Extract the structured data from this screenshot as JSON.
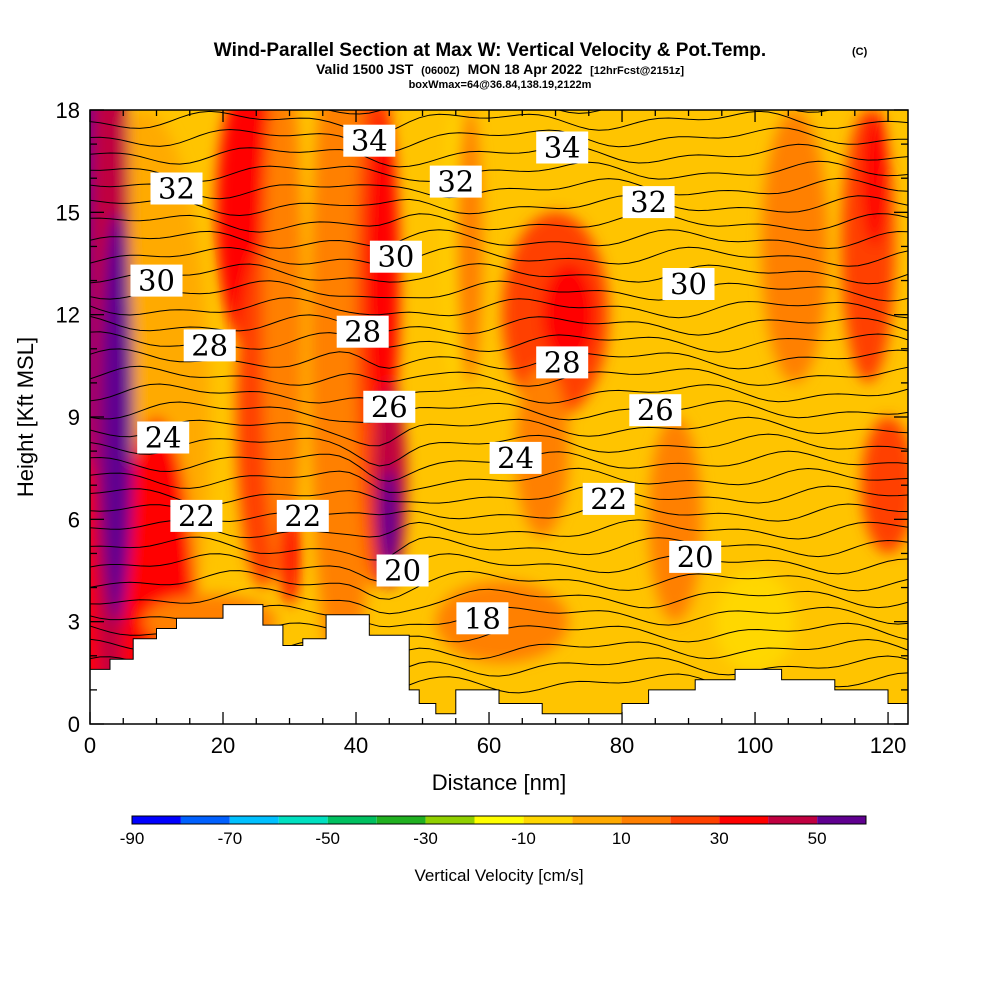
{
  "chart_data": {
    "type": "heatmap",
    "title": "Wind-Parallel Section at Max W: Vertical Velocity & Pot.Temp.",
    "title_mark": "(C)",
    "subtitle_valid": "Valid 1500 JST",
    "subtitle_utc": "(0600Z)",
    "subtitle_date": "MON 18 Apr 2022",
    "subtitle_fcst": "[12hrFcst@2151z]",
    "subtitle_box": "boxWmax=64@36.84,138.19,2122m",
    "xlabel": "Distance [nm]",
    "ylabel": "Height [Kft MSL]",
    "xlim": [
      0,
      123
    ],
    "ylim": [
      0,
      18
    ],
    "x_ticks": [
      "0",
      "20",
      "40",
      "60",
      "80",
      "100",
      "120"
    ],
    "x_tick_values": [
      0,
      20,
      40,
      60,
      80,
      100,
      120
    ],
    "y_ticks": [
      "0",
      "3",
      "6",
      "9",
      "12",
      "15",
      "18"
    ],
    "y_tick_values": [
      0,
      3,
      6,
      9,
      12,
      15,
      18
    ],
    "colorbar": {
      "label": "Vertical Velocity [cm/s]",
      "tick_labels": [
        "-90",
        "-70",
        "-50",
        "-30",
        "-10",
        "10",
        "30",
        "50"
      ],
      "tick_values": [
        -90,
        -70,
        -50,
        -30,
        -10,
        10,
        30,
        50
      ],
      "bounds": [
        -90,
        60
      ],
      "step": 10,
      "colors": [
        "#0000ff",
        "#0060ff",
        "#00c0ff",
        "#00e0c0",
        "#00c060",
        "#20b020",
        "#90d000",
        "#ffff00",
        "#ffd700",
        "#ffaa00",
        "#ff8000",
        "#ff4000",
        "#ff0000",
        "#c00040",
        "#600090"
      ]
    },
    "contour_labels": [
      {
        "text": "34",
        "x": 42,
        "y": 17.1
      },
      {
        "text": "34",
        "x": 71,
        "y": 16.9
      },
      {
        "text": "32",
        "x": 13,
        "y": 15.7
      },
      {
        "text": "32",
        "x": 55,
        "y": 15.9
      },
      {
        "text": "32",
        "x": 84,
        "y": 15.3
      },
      {
        "text": "30",
        "x": 10,
        "y": 13.0
      },
      {
        "text": "30",
        "x": 46,
        "y": 13.7
      },
      {
        "text": "30",
        "x": 90,
        "y": 12.9
      },
      {
        "text": "28",
        "x": 18,
        "y": 11.1
      },
      {
        "text": "28",
        "x": 41,
        "y": 11.5
      },
      {
        "text": "28",
        "x": 71,
        "y": 10.6
      },
      {
        "text": "26",
        "x": 45,
        "y": 9.3
      },
      {
        "text": "26",
        "x": 85,
        "y": 9.2
      },
      {
        "text": "24",
        "x": 11,
        "y": 8.4
      },
      {
        "text": "24",
        "x": 64,
        "y": 7.8
      },
      {
        "text": "22",
        "x": 16,
        "y": 6.1
      },
      {
        "text": "22",
        "x": 32,
        "y": 6.1
      },
      {
        "text": "22",
        "x": 78,
        "y": 6.6
      },
      {
        "text": "20",
        "x": 47,
        "y": 4.5
      },
      {
        "text": "20",
        "x": 91,
        "y": 4.9
      },
      {
        "text": "18",
        "x": 59,
        "y": 3.1
      }
    ],
    "terrain_top": [
      [
        0,
        1.6
      ],
      [
        3,
        1.6
      ],
      [
        3,
        1.9
      ],
      [
        6.5,
        1.9
      ],
      [
        6.5,
        2.5
      ],
      [
        10,
        2.5
      ],
      [
        10,
        2.8
      ],
      [
        13,
        2.8
      ],
      [
        13,
        3.1
      ],
      [
        20,
        3.1
      ],
      [
        20,
        3.5
      ],
      [
        26,
        3.5
      ],
      [
        26,
        2.9
      ],
      [
        29,
        2.9
      ],
      [
        29,
        2.3
      ],
      [
        32,
        2.3
      ],
      [
        32,
        2.5
      ],
      [
        35.5,
        2.5
      ],
      [
        35.5,
        3.2
      ],
      [
        42,
        3.2
      ],
      [
        42,
        2.6
      ],
      [
        48,
        2.6
      ],
      [
        48,
        1.0
      ],
      [
        49.5,
        1.0
      ],
      [
        49.5,
        0.6
      ],
      [
        52,
        0.6
      ],
      [
        52,
        0.3
      ],
      [
        55,
        0.3
      ],
      [
        55,
        1.0
      ],
      [
        61.5,
        1.0
      ],
      [
        61.5,
        0.6
      ],
      [
        68,
        0.6
      ],
      [
        68,
        0.3
      ],
      [
        80,
        0.3
      ],
      [
        80,
        0.6
      ],
      [
        84,
        0.6
      ],
      [
        84,
        1.0
      ],
      [
        91,
        1.0
      ],
      [
        91,
        1.3
      ],
      [
        97,
        1.3
      ],
      [
        97,
        1.6
      ],
      [
        104,
        1.6
      ],
      [
        104,
        1.3
      ],
      [
        112,
        1.3
      ],
      [
        112,
        1.0
      ],
      [
        120,
        1.0
      ],
      [
        120,
        0.6
      ],
      [
        123,
        0.6
      ]
    ]
  }
}
